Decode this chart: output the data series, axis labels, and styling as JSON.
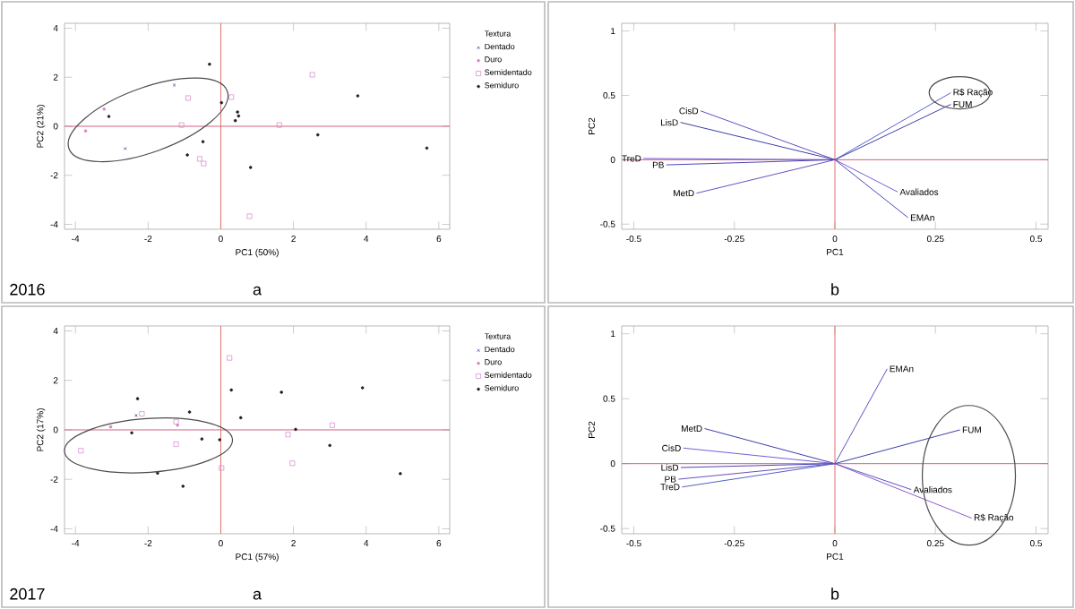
{
  "chart_data": [
    {
      "type": "scatter",
      "xlabel": "PC1 (50%)",
      "ylabel": "PC2 (21%)",
      "legend_title": "Textura",
      "legend": "right",
      "annotations": [
        "2016",
        "a"
      ],
      "xlim": [
        -4.3,
        6.3
      ],
      "ylim": [
        -4.2,
        4.2
      ],
      "xticks": [
        -4,
        -2,
        0,
        2,
        4,
        6
      ],
      "yticks": [
        -4,
        -2,
        0,
        2,
        4
      ],
      "ref_lines": [
        {
          "axis": "x",
          "value": 0,
          "color": "#e07070"
        },
        {
          "axis": "y",
          "value": 0,
          "color": "#d4607a"
        }
      ],
      "series": [
        {
          "name": "Dentado",
          "color": "#4040b0",
          "marker": "cross",
          "x": [
            -1.28,
            -2.63
          ],
          "values": [
            1.68,
            -0.91
          ]
        },
        {
          "name": "Duro",
          "color": "#e080c0",
          "marker": "circle",
          "x": [
            -3.21,
            -3.72
          ],
          "values": [
            0.7,
            -0.19
          ]
        },
        {
          "name": "Semidentado",
          "color": "#d890d0",
          "marker": "square",
          "x": [
            -0.9,
            0.29,
            2.52,
            -1.08,
            -0.58,
            -0.47,
            1.61,
            0.79
          ],
          "values": [
            1.15,
            1.19,
            2.1,
            0.05,
            -1.33,
            -1.52,
            0.05,
            -3.67
          ]
        },
        {
          "name": "Semiduro",
          "color": "#202020",
          "marker": "circle",
          "x": [
            -0.31,
            0.02,
            3.77,
            -3.08,
            -0.49,
            -0.92,
            0.46,
            0.49,
            0.4,
            2.67,
            0.82,
            5.67
          ],
          "values": [
            2.53,
            0.96,
            1.24,
            0.4,
            -0.63,
            -1.17,
            0.58,
            0.42,
            0.23,
            -0.35,
            -1.68,
            -0.89
          ]
        }
      ]
    },
    {
      "type": "line",
      "xlabel": "PC1",
      "ylabel": "PC2",
      "annotations": [
        "b"
      ],
      "xlim": [
        -0.53,
        0.53
      ],
      "ylim": [
        -0.54,
        1.06
      ],
      "xticks": [
        -0.5,
        -0.25,
        0,
        0.25,
        0.5
      ],
      "yticks": [
        -0.5,
        0,
        0.5,
        1
      ],
      "ref_lines": [
        {
          "axis": "x",
          "value": 0,
          "color": "#e07070"
        },
        {
          "axis": "y",
          "value": 0,
          "color": "#d4607a"
        }
      ],
      "series": [
        {
          "name": "CisD",
          "color": "#5b4fc4",
          "x": [
            0,
            -0.334
          ],
          "values": [
            0,
            0.38
          ]
        },
        {
          "name": "LisD",
          "color": "#3c3ca8",
          "x": [
            0,
            -0.384
          ],
          "values": [
            0,
            0.29
          ]
        },
        {
          "name": "TreD",
          "color": "#7a5ad8",
          "x": [
            0,
            -0.476
          ],
          "values": [
            0,
            0.01
          ]
        },
        {
          "name": "PB",
          "color": "#4646b8",
          "x": [
            0,
            -0.419
          ],
          "values": [
            0,
            -0.04
          ]
        },
        {
          "name": "MetD",
          "color": "#6a4ec0",
          "x": [
            0,
            -0.344
          ],
          "values": [
            0,
            -0.26
          ]
        },
        {
          "name": "R$ Ração",
          "color": "#5060c8",
          "x": [
            0,
            0.288
          ],
          "values": [
            0,
            0.52
          ]
        },
        {
          "name": "FUM",
          "color": "#3c3ca8",
          "x": [
            0,
            0.288
          ],
          "values": [
            0,
            0.43
          ]
        },
        {
          "name": "Avaliados",
          "color": "#7a5ad8",
          "x": [
            0,
            0.156
          ],
          "values": [
            0,
            -0.25
          ]
        },
        {
          "name": "EMAn",
          "color": "#4646b8",
          "x": [
            0,
            0.182
          ],
          "values": [
            0,
            -0.45
          ]
        }
      ]
    },
    {
      "type": "scatter",
      "xlabel": "PC1 (57%)",
      "ylabel": "PC2 (17%)",
      "legend_title": "Textura",
      "legend": "right",
      "annotations": [
        "2017",
        "a"
      ],
      "xlim": [
        -4.3,
        6.3
      ],
      "ylim": [
        -4.2,
        4.2
      ],
      "xticks": [
        -4,
        -2,
        0,
        2,
        4,
        6
      ],
      "yticks": [
        -4,
        -2,
        0,
        2,
        4
      ],
      "ref_lines": [
        {
          "axis": "x",
          "value": 0,
          "color": "#e07070"
        },
        {
          "axis": "y",
          "value": 0,
          "color": "#d4607a"
        }
      ],
      "series": [
        {
          "name": "Dentado",
          "color": "#4040b0",
          "marker": "cross",
          "x": [
            -2.33
          ],
          "values": [
            0.58
          ]
        },
        {
          "name": "Duro",
          "color": "#e080c0",
          "marker": "circle",
          "x": [
            -1.19,
            -3.03
          ],
          "values": [
            0.19,
            0.12
          ]
        },
        {
          "name": "Semidentado",
          "color": "#d890d0",
          "marker": "square",
          "x": [
            0.24,
            -2.17,
            -1.23,
            -3.85,
            -1.23,
            0.02,
            1.85,
            1.97,
            3.07
          ],
          "values": [
            2.91,
            0.65,
            0.33,
            -0.84,
            -0.58,
            -1.54,
            -0.19,
            -1.35,
            0.19
          ]
        },
        {
          "name": "Semiduro",
          "color": "#202020",
          "marker": "circle",
          "x": [
            0.29,
            0.55,
            1.67,
            3.9,
            -2.29,
            -0.86,
            -2.45,
            -0.52,
            -0.03,
            -1.74,
            -1.04,
            2.06,
            3.0,
            4.94
          ],
          "values": [
            1.61,
            0.49,
            1.52,
            1.7,
            1.26,
            0.72,
            -0.12,
            -0.37,
            -0.4,
            -1.75,
            -2.28,
            0.02,
            -0.63,
            -1.77
          ]
        }
      ]
    },
    {
      "type": "line",
      "xlabel": "PC1",
      "ylabel": "PC2",
      "annotations": [
        "b"
      ],
      "xlim": [
        -0.53,
        0.53
      ],
      "ylim": [
        -0.54,
        1.06
      ],
      "xticks": [
        -0.5,
        -0.25,
        0,
        0.25,
        0.5
      ],
      "yticks": [
        -0.5,
        0,
        0.5,
        1
      ],
      "ref_lines": [
        {
          "axis": "x",
          "value": 0,
          "color": "#e07070"
        },
        {
          "axis": "y",
          "value": 0,
          "color": "#d4607a"
        }
      ],
      "series": [
        {
          "name": "EMAn",
          "color": "#5b4fc4",
          "x": [
            0,
            0.13
          ],
          "values": [
            0,
            0.73
          ]
        },
        {
          "name": "MetD",
          "color": "#3c3ca8",
          "x": [
            0,
            -0.324
          ],
          "values": [
            0,
            0.27
          ]
        },
        {
          "name": "CisD",
          "color": "#7a5ad8",
          "x": [
            0,
            -0.377
          ],
          "values": [
            0,
            0.12
          ]
        },
        {
          "name": "LisD",
          "color": "#4646b8",
          "x": [
            0,
            -0.383
          ],
          "values": [
            0,
            -0.03
          ]
        },
        {
          "name": "PB",
          "color": "#6a4ec0",
          "x": [
            0,
            -0.389
          ],
          "values": [
            0,
            -0.12
          ]
        },
        {
          "name": "TreD",
          "color": "#5060c8",
          "x": [
            0,
            -0.38
          ],
          "values": [
            0,
            -0.18
          ]
        },
        {
          "name": "FUM",
          "color": "#3c3ca8",
          "x": [
            0,
            0.311
          ],
          "values": [
            0,
            0.26
          ]
        },
        {
          "name": "Avaliados",
          "color": "#5b4fc4",
          "x": [
            0,
            0.19
          ],
          "values": [
            0,
            -0.2
          ]
        },
        {
          "name": "R$ Ração",
          "color": "#8a5cc8",
          "x": [
            0,
            0.34
          ],
          "values": [
            0,
            -0.42
          ]
        }
      ]
    }
  ]
}
